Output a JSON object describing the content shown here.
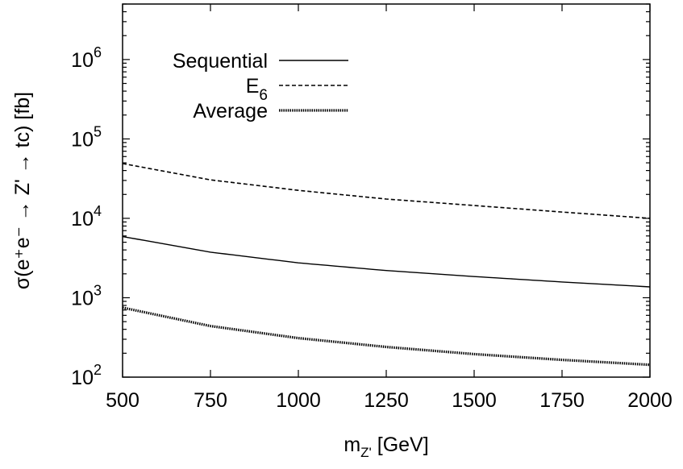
{
  "chart_data": {
    "type": "line",
    "xlabel": "m",
    "xlabel_sub": "Z'",
    "xlabel_unit": " [GeV]",
    "ylabel": "σ(e⁺e⁻ → Z' → tc) [fb]",
    "xlim": [
      500,
      2000
    ],
    "ylim": [
      100,
      5000000
    ],
    "yscale": "log",
    "x_ticks": [
      500,
      750,
      1000,
      1250,
      1500,
      1750,
      2000
    ],
    "x_tick_labels": [
      "500",
      "750",
      "1000",
      "1250",
      "1500",
      "1750",
      "2000"
    ],
    "y_ticks": [
      {
        "value": 100,
        "base": "10",
        "exp": "2"
      },
      {
        "value": 1000,
        "base": "10",
        "exp": "3"
      },
      {
        "value": 10000,
        "base": "10",
        "exp": "4"
      },
      {
        "value": 100000,
        "base": "10",
        "exp": "5"
      },
      {
        "value": 1000000,
        "base": "10",
        "exp": "6"
      }
    ],
    "legend_position": "top-left",
    "grid": false,
    "series": [
      {
        "name": "Sequential",
        "label_main": "Sequential",
        "label_sub": "",
        "style": "solid",
        "x": [
          500,
          750,
          1000,
          1250,
          1500,
          1750,
          2000
        ],
        "y": [
          5900,
          3750,
          2750,
          2200,
          1850,
          1580,
          1370
        ]
      },
      {
        "name": "E6",
        "label_main": "E",
        "label_sub": "6",
        "style": "dashed",
        "x": [
          500,
          750,
          1000,
          1250,
          1500,
          1750,
          2000
        ],
        "y": [
          49000,
          30500,
          22500,
          17500,
          14500,
          12000,
          10000
        ]
      },
      {
        "name": "Average",
        "label_main": "Average",
        "label_sub": "",
        "style": "dotted",
        "x": [
          500,
          750,
          1000,
          1250,
          1500,
          1750,
          2000
        ],
        "y": [
          750,
          440,
          310,
          240,
          195,
          165,
          143
        ]
      }
    ]
  }
}
